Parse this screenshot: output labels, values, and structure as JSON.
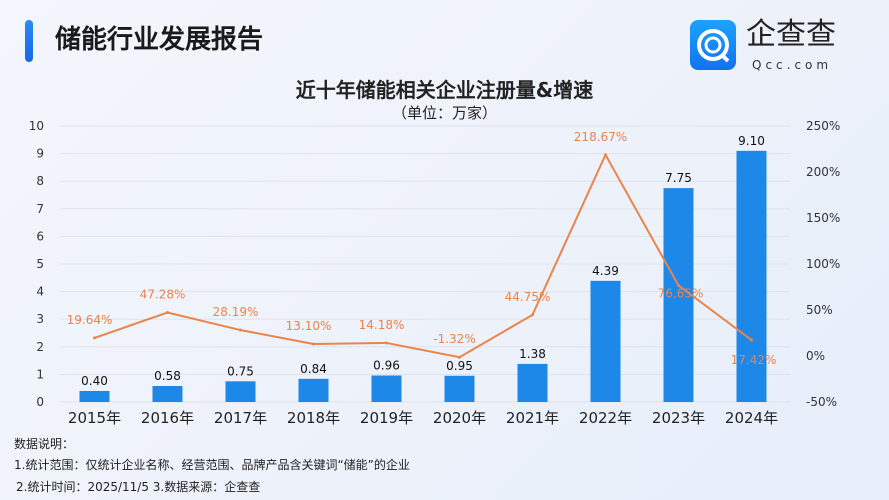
{
  "header": {
    "title": "储能行业发展报告",
    "logo_text": "企查查",
    "logo_sub": "Qcc.com"
  },
  "chart_data": {
    "type": "bar+line",
    "title": "近十年储能相关企业注册量&增速",
    "subtitle": "（单位：万家）",
    "categories": [
      "2015年",
      "2016年",
      "2017年",
      "2018年",
      "2019年",
      "2020年",
      "2021年",
      "2022年",
      "2023年",
      "2024年"
    ],
    "series": [
      {
        "type": "bar",
        "axis": "left",
        "values": [
          0.4,
          0.58,
          0.75,
          0.84,
          0.96,
          0.95,
          1.38,
          4.39,
          7.75,
          9.1
        ],
        "labels": [
          "0.40",
          "0.58",
          "0.75",
          "0.84",
          "0.96",
          "0.95",
          "1.38",
          "4.39",
          "7.75",
          "9.10"
        ],
        "color": "#1e88e8"
      },
      {
        "type": "line",
        "axis": "right",
        "values": [
          19.64,
          47.28,
          28.19,
          13.1,
          14.18,
          -1.32,
          44.75,
          218.67,
          76.65,
          17.42
        ],
        "labels": [
          "19.64%",
          "47.28%",
          "28.19%",
          "13.10%",
          "14.18%",
          "-1.32%",
          "44.75%",
          "218.67%",
          "76.65%",
          "17.42%"
        ],
        "color": "#e8844c"
      }
    ],
    "left_axis": {
      "ylim": [
        0,
        10
      ],
      "ticks": [
        "0",
        "1",
        "2",
        "3",
        "4",
        "5",
        "6",
        "7",
        "8",
        "9",
        "10"
      ]
    },
    "right_axis": {
      "ylim": [
        -50,
        250
      ],
      "ticks": [
        "-50%",
        "0%",
        "50%",
        "100%",
        "150%",
        "200%",
        "250%"
      ]
    },
    "grid": true
  },
  "notes": {
    "heading": "数据说明：",
    "line1": "1.统计范围：仅统计企业名称、经营范围、品牌产品含关键词“储能”的企业",
    "line2": "2.统计时间：2025/11/5  3.数据来源：企查查"
  }
}
